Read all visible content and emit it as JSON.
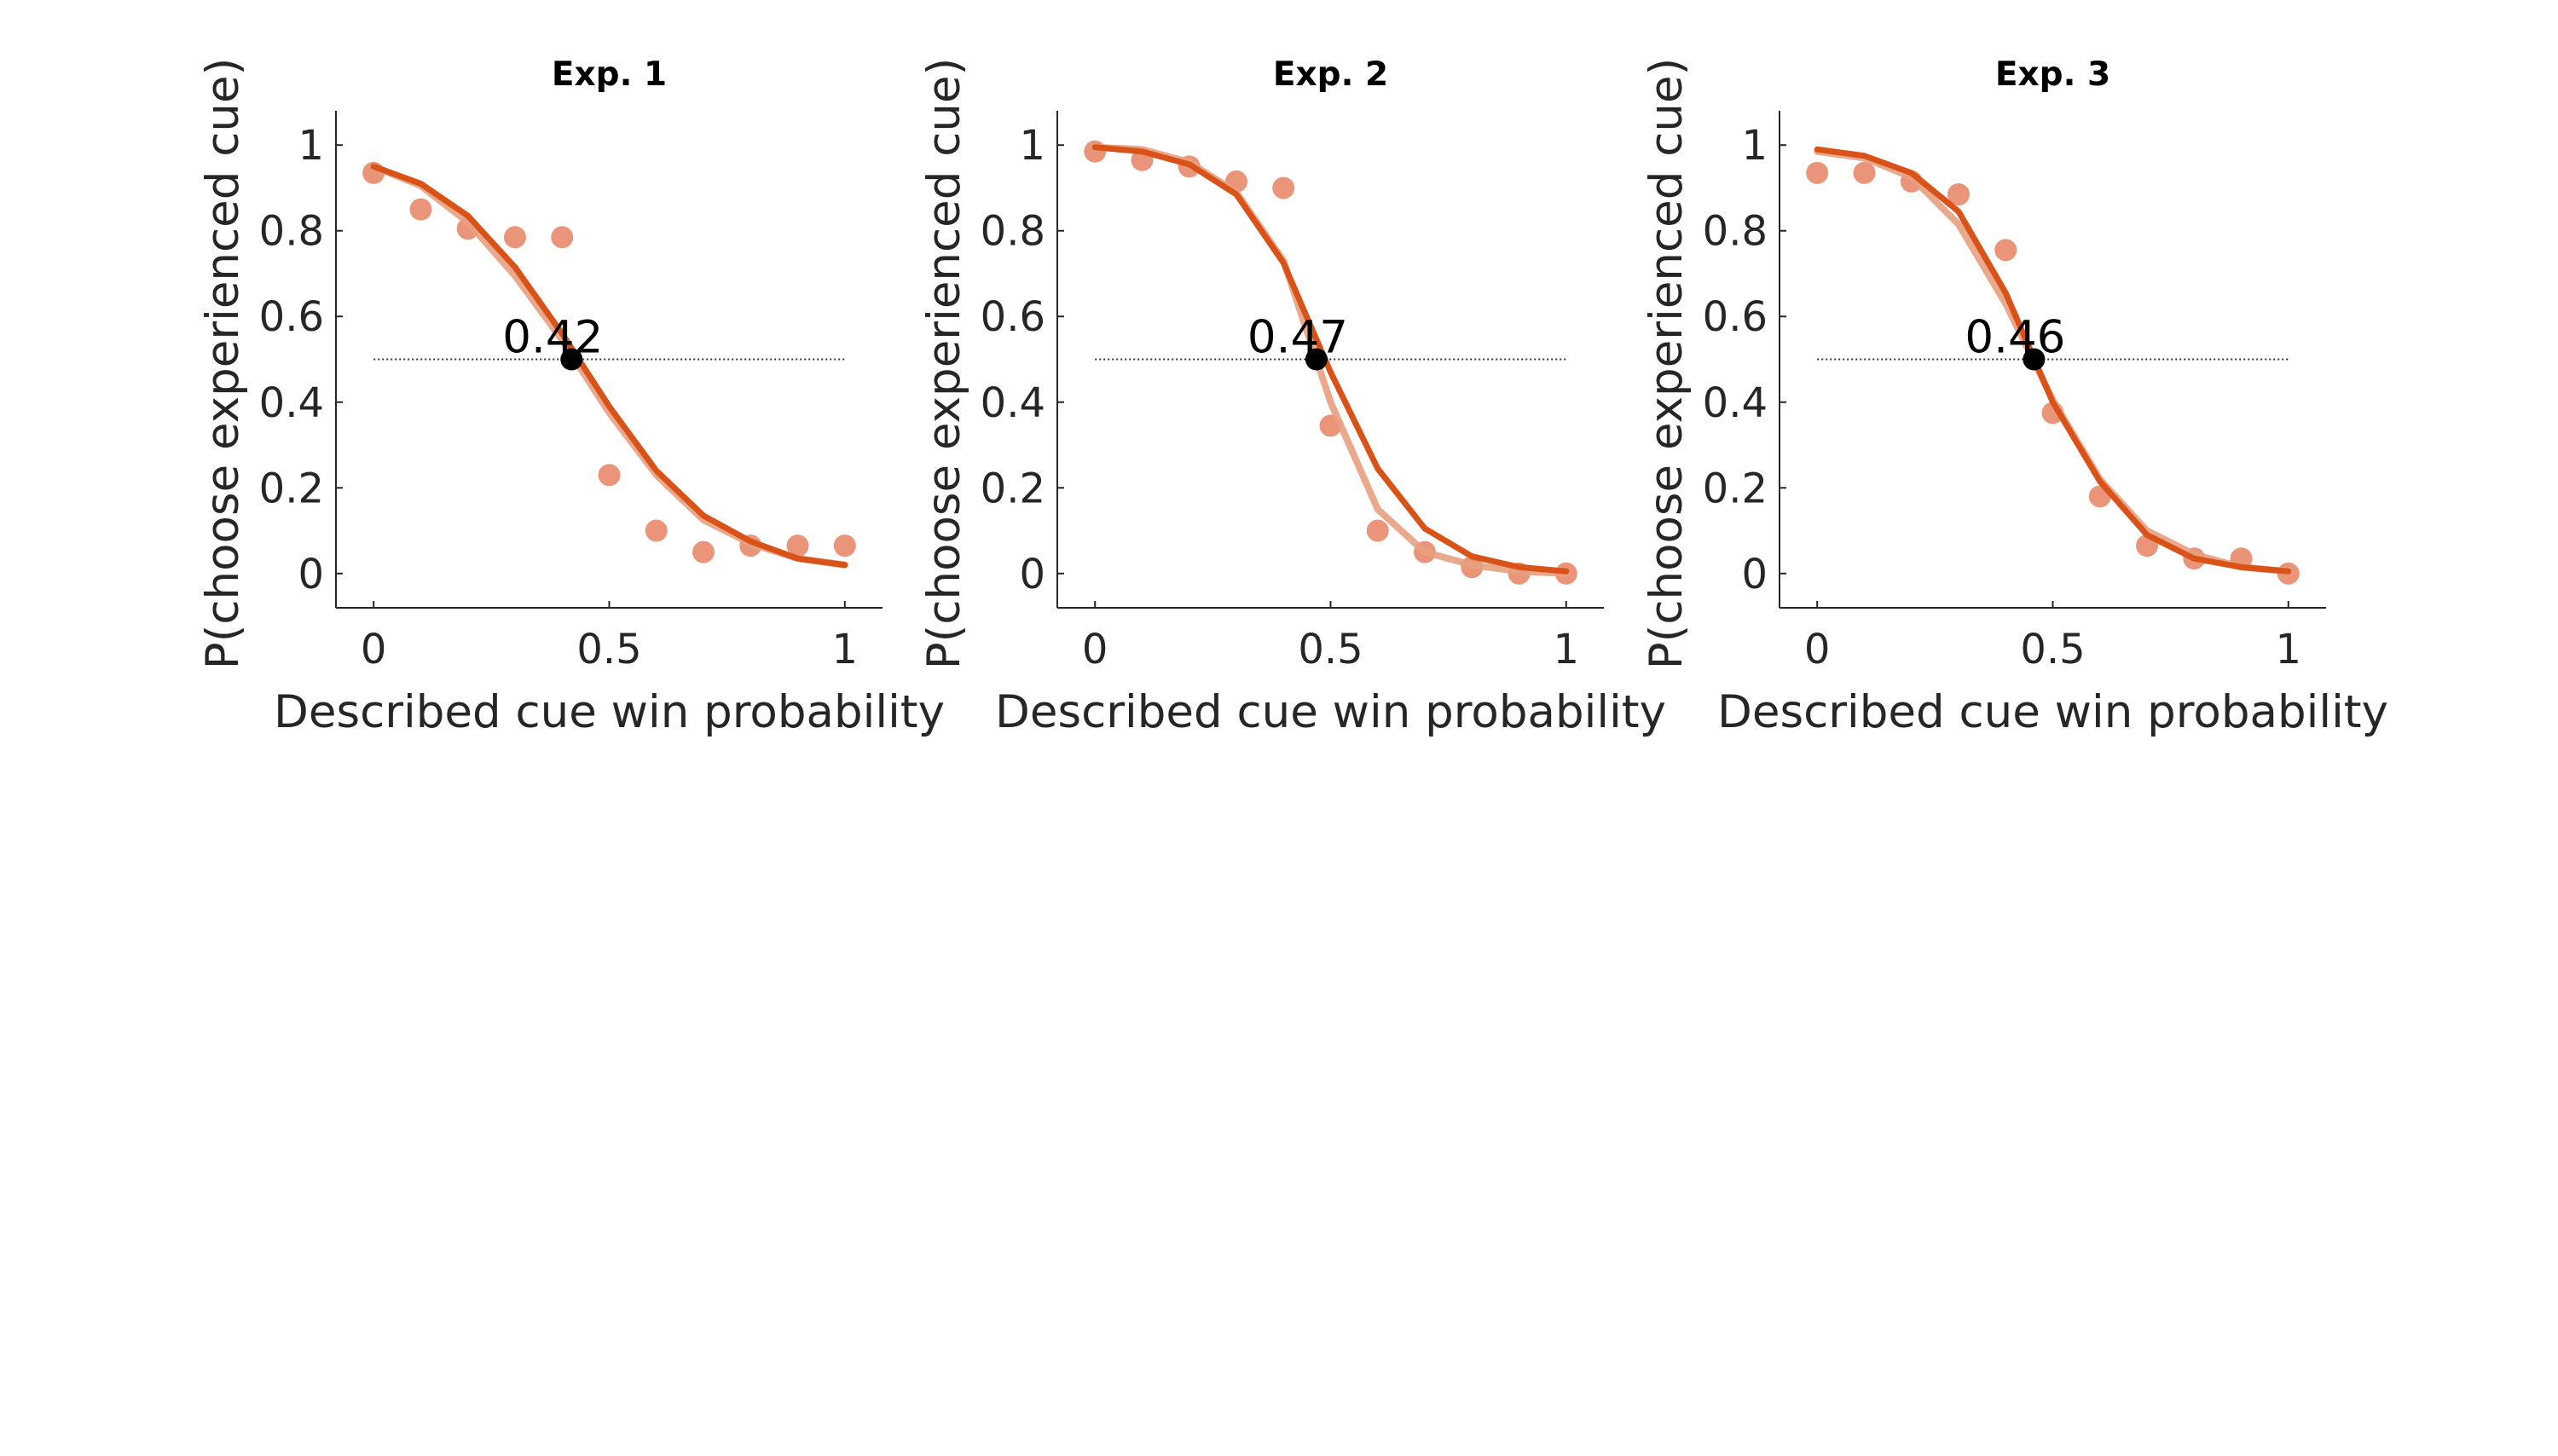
{
  "colors": {
    "model_fit": "#d95319",
    "data": "#e8896a",
    "model_light": "#e8a080",
    "threshold_point": "#000000",
    "axis": "#262626",
    "reference_line": "#333333"
  },
  "chart_data": [
    {
      "type": "line",
      "title": "Exp. 1",
      "xlabel": "Described cue win probability",
      "ylabel": "P(choose experienced cue)",
      "xlim": [
        -0.08,
        1.08
      ],
      "ylim": [
        -0.08,
        1.08
      ],
      "xticks": [
        0,
        0.5,
        1
      ],
      "xtick_labels": [
        "0",
        "0.5",
        "1"
      ],
      "yticks": [
        0,
        0.2,
        0.4,
        0.6,
        0.8,
        1
      ],
      "ytick_labels": [
        "0",
        "0.2",
        "0.4",
        "0.6",
        "0.8",
        "1"
      ],
      "grid": false,
      "reference_line": {
        "y": 0.5,
        "x": [
          0,
          1
        ]
      },
      "x": [
        0,
        0.1,
        0.2,
        0.3,
        0.4,
        0.5,
        0.6,
        0.7,
        0.8,
        0.9,
        1
      ],
      "series": [
        {
          "kind": "scatter",
          "role": "data",
          "values": [
            0.935,
            0.85,
            0.805,
            0.785,
            0.785,
            0.23,
            0.1,
            0.05,
            0.065,
            0.065,
            0.065
          ]
        },
        {
          "kind": "line",
          "role": "model_light",
          "values": [
            0.95,
            0.905,
            0.82,
            0.695,
            0.545,
            0.375,
            0.23,
            0.125,
            0.07,
            0.035,
            0.02
          ]
        },
        {
          "kind": "line",
          "role": "model_fit",
          "values": [
            0.95,
            0.91,
            0.835,
            0.715,
            0.56,
            0.39,
            0.24,
            0.135,
            0.075,
            0.035,
            0.02
          ]
        }
      ],
      "threshold": {
        "x": 0.42,
        "y": 0.5,
        "label": "0.42"
      }
    },
    {
      "type": "line",
      "title": "Exp. 2",
      "xlabel": "Described cue win probability",
      "ylabel": "P(choose experienced cue)",
      "xlim": [
        -0.08,
        1.08
      ],
      "ylim": [
        -0.08,
        1.08
      ],
      "xticks": [
        0,
        0.5,
        1
      ],
      "xtick_labels": [
        "0",
        "0.5",
        "1"
      ],
      "yticks": [
        0,
        0.2,
        0.4,
        0.6,
        0.8,
        1
      ],
      "ytick_labels": [
        "0",
        "0.2",
        "0.4",
        "0.6",
        "0.8",
        "1"
      ],
      "grid": false,
      "reference_line": {
        "y": 0.5,
        "x": [
          0,
          1
        ]
      },
      "x": [
        0,
        0.1,
        0.2,
        0.3,
        0.4,
        0.5,
        0.6,
        0.7,
        0.8,
        0.9,
        1
      ],
      "series": [
        {
          "kind": "scatter",
          "role": "data",
          "values": [
            0.985,
            0.965,
            0.95,
            0.915,
            0.9,
            0.345,
            0.1,
            0.05,
            0.015,
            0.0,
            0.0
          ]
        },
        {
          "kind": "line",
          "role": "model_light",
          "values": [
            0.995,
            0.99,
            0.96,
            0.89,
            0.73,
            0.4,
            0.15,
            0.05,
            0.02,
            0.005,
            0.0
          ]
        },
        {
          "kind": "line",
          "role": "model_fit",
          "values": [
            0.995,
            0.985,
            0.955,
            0.885,
            0.725,
            0.47,
            0.245,
            0.105,
            0.04,
            0.015,
            0.005
          ]
        }
      ],
      "threshold": {
        "x": 0.47,
        "y": 0.5,
        "label": "0.47"
      }
    },
    {
      "type": "line",
      "title": "Exp. 3",
      "xlabel": "Described cue win probability",
      "ylabel": "P(choose experienced cue)",
      "xlim": [
        -0.08,
        1.08
      ],
      "ylim": [
        -0.08,
        1.08
      ],
      "xticks": [
        0,
        0.5,
        1
      ],
      "xtick_labels": [
        "0",
        "0.5",
        "1"
      ],
      "yticks": [
        0,
        0.2,
        0.4,
        0.6,
        0.8,
        1
      ],
      "ytick_labels": [
        "0",
        "0.2",
        "0.4",
        "0.6",
        "0.8",
        "1"
      ],
      "grid": false,
      "reference_line": {
        "y": 0.5,
        "x": [
          0,
          1
        ]
      },
      "x": [
        0,
        0.1,
        0.2,
        0.3,
        0.4,
        0.5,
        0.6,
        0.7,
        0.8,
        0.9,
        1
      ],
      "series": [
        {
          "kind": "scatter",
          "role": "data",
          "values": [
            0.935,
            0.935,
            0.915,
            0.885,
            0.755,
            0.375,
            0.18,
            0.065,
            0.035,
            0.035,
            0.0
          ]
        },
        {
          "kind": "line",
          "role": "model_light",
          "values": [
            0.985,
            0.97,
            0.925,
            0.815,
            0.63,
            0.405,
            0.22,
            0.1,
            0.045,
            0.015,
            0.005
          ]
        },
        {
          "kind": "line",
          "role": "model_fit",
          "values": [
            0.99,
            0.975,
            0.935,
            0.845,
            0.655,
            0.4,
            0.215,
            0.09,
            0.035,
            0.015,
            0.005
          ]
        }
      ],
      "threshold": {
        "x": 0.46,
        "y": 0.5,
        "label": "0.46"
      }
    }
  ]
}
